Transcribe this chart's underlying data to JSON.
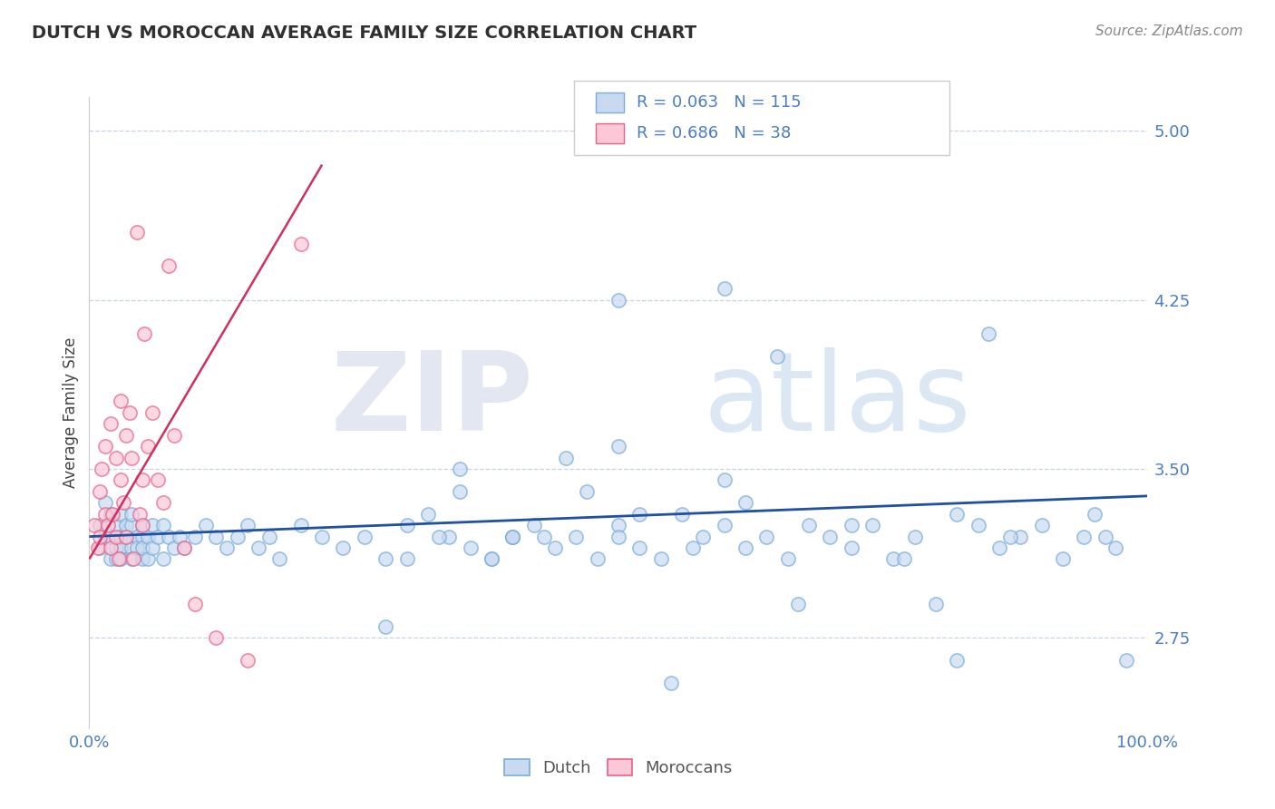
{
  "title": "DUTCH VS MOROCCAN AVERAGE FAMILY SIZE CORRELATION CHART",
  "source_text": "Source: ZipAtlas.com",
  "ylabel": "Average Family Size",
  "watermark_zip": "ZIP",
  "watermark_atlas": "atlas",
  "xlim": [
    0.0,
    1.0
  ],
  "ylim": [
    2.35,
    5.15
  ],
  "yticks": [
    2.75,
    3.5,
    4.25,
    5.0
  ],
  "xticks": [
    0.0,
    0.25,
    0.5,
    0.75,
    1.0
  ],
  "xticklabels": [
    "0.0%",
    "",
    "",
    "",
    "100.0%"
  ],
  "dutch_fill": "#c8daf0",
  "dutch_edge": "#7aabda",
  "moroccan_fill": "#fcc8d8",
  "moroccan_edge": "#e8608a",
  "trend_dutch_color": "#2050a0",
  "trend_moroccan_color": "#d03060",
  "title_color": "#303030",
  "axis_tick_color": "#4a7cc7",
  "dutch_R": "0.063",
  "dutch_N": "115",
  "moroccan_R": "0.686",
  "moroccan_N": "38",
  "dutch_scatter_x": [
    0.01,
    0.01,
    0.015,
    0.015,
    0.02,
    0.02,
    0.02,
    0.025,
    0.025,
    0.025,
    0.03,
    0.03,
    0.03,
    0.03,
    0.035,
    0.035,
    0.04,
    0.04,
    0.04,
    0.04,
    0.045,
    0.045,
    0.05,
    0.05,
    0.05,
    0.05,
    0.055,
    0.055,
    0.06,
    0.06,
    0.065,
    0.07,
    0.07,
    0.075,
    0.08,
    0.085,
    0.09,
    0.1,
    0.11,
    0.12,
    0.13,
    0.14,
    0.15,
    0.16,
    0.17,
    0.18,
    0.2,
    0.22,
    0.24,
    0.26,
    0.28,
    0.3,
    0.32,
    0.34,
    0.36,
    0.38,
    0.4,
    0.42,
    0.44,
    0.46,
    0.48,
    0.5,
    0.5,
    0.52,
    0.54,
    0.56,
    0.58,
    0.6,
    0.62,
    0.64,
    0.65,
    0.66,
    0.68,
    0.7,
    0.72,
    0.74,
    0.76,
    0.78,
    0.8,
    0.82,
    0.84,
    0.85,
    0.86,
    0.88,
    0.9,
    0.92,
    0.94,
    0.95,
    0.96,
    0.97,
    0.98,
    0.35,
    0.4,
    0.45,
    0.5,
    0.55,
    0.6,
    0.3,
    0.35,
    0.4,
    0.28,
    0.33,
    0.38,
    0.43,
    0.47,
    0.52,
    0.57,
    0.62,
    0.67,
    0.72,
    0.77,
    0.82,
    0.87,
    0.5,
    0.6
  ],
  "dutch_scatter_y": [
    3.25,
    3.15,
    3.35,
    3.2,
    3.1,
    3.3,
    3.2,
    3.15,
    3.25,
    3.1,
    3.2,
    3.3,
    3.15,
    3.1,
    3.25,
    3.2,
    3.15,
    3.1,
    3.25,
    3.3,
    3.2,
    3.15,
    3.2,
    3.1,
    3.25,
    3.15,
    3.1,
    3.2,
    3.25,
    3.15,
    3.2,
    3.1,
    3.25,
    3.2,
    3.15,
    3.2,
    3.15,
    3.2,
    3.25,
    3.2,
    3.15,
    3.2,
    3.25,
    3.15,
    3.2,
    3.1,
    3.25,
    3.2,
    3.15,
    3.2,
    3.1,
    3.25,
    3.3,
    3.2,
    3.15,
    3.1,
    3.2,
    3.25,
    3.15,
    3.2,
    3.1,
    3.6,
    3.25,
    3.15,
    3.1,
    3.3,
    3.2,
    3.25,
    3.15,
    3.2,
    4.0,
    3.1,
    3.25,
    3.2,
    3.15,
    3.25,
    3.1,
    3.2,
    2.9,
    3.3,
    3.25,
    4.1,
    3.15,
    3.2,
    3.25,
    3.1,
    3.2,
    3.3,
    3.2,
    3.15,
    2.65,
    3.4,
    3.2,
    3.55,
    3.2,
    2.55,
    3.45,
    3.1,
    3.5,
    3.2,
    2.8,
    3.2,
    3.1,
    3.2,
    3.4,
    3.3,
    3.15,
    3.35,
    2.9,
    3.25,
    3.1,
    2.65,
    3.2,
    4.25,
    4.3
  ],
  "moroccan_scatter_x": [
    0.005,
    0.008,
    0.01,
    0.01,
    0.012,
    0.015,
    0.015,
    0.018,
    0.02,
    0.02,
    0.022,
    0.025,
    0.025,
    0.028,
    0.03,
    0.03,
    0.032,
    0.035,
    0.035,
    0.038,
    0.04,
    0.042,
    0.045,
    0.048,
    0.05,
    0.05,
    0.052,
    0.055,
    0.06,
    0.065,
    0.07,
    0.075,
    0.08,
    0.09,
    0.1,
    0.12,
    0.15,
    0.2
  ],
  "moroccan_scatter_y": [
    3.25,
    3.15,
    3.4,
    3.2,
    3.5,
    3.3,
    3.6,
    3.25,
    3.15,
    3.7,
    3.3,
    3.2,
    3.55,
    3.1,
    3.45,
    3.8,
    3.35,
    3.2,
    3.65,
    3.75,
    3.55,
    3.1,
    4.55,
    3.3,
    3.25,
    3.45,
    4.1,
    3.6,
    3.75,
    3.45,
    3.35,
    4.4,
    3.65,
    3.15,
    2.9,
    2.75,
    2.65,
    4.5
  ],
  "dutch_trend_x": [
    0.0,
    1.0
  ],
  "dutch_trend_y": [
    3.2,
    3.38
  ],
  "moroccan_trend_x": [
    0.0,
    0.22
  ],
  "moroccan_trend_y": [
    3.1,
    4.85
  ]
}
